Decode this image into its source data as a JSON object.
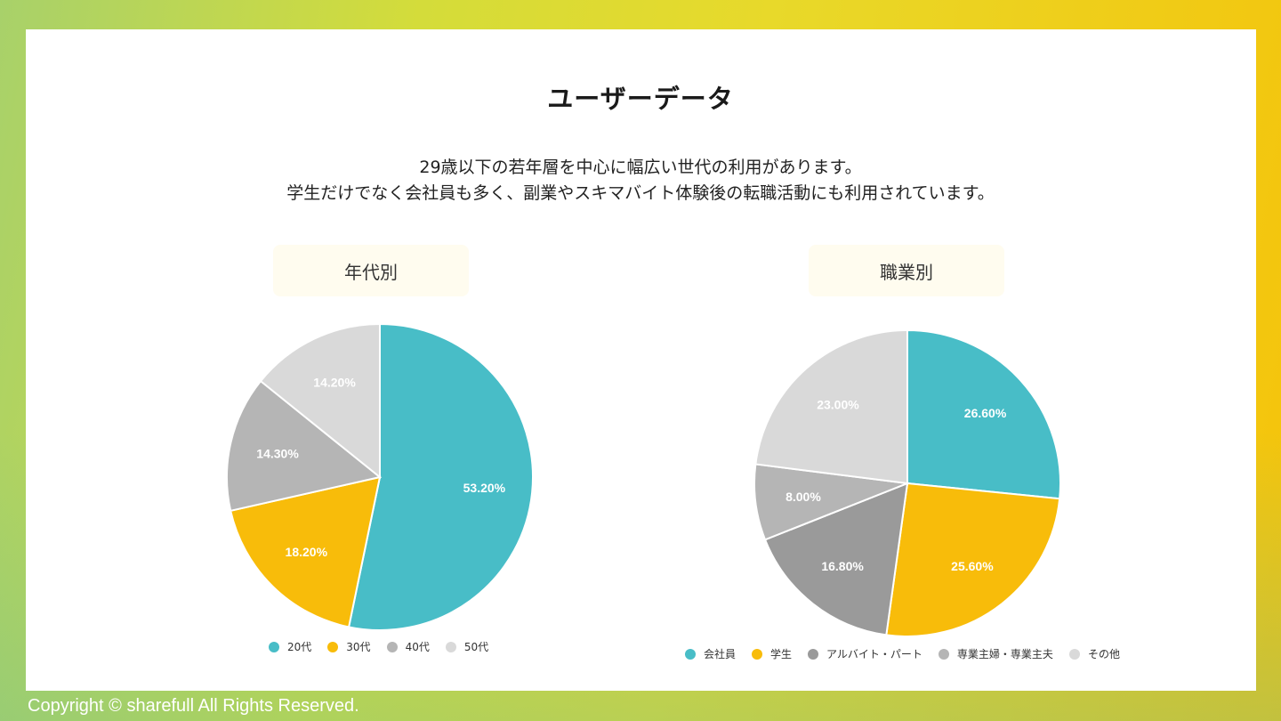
{
  "header": {
    "title": "ユーザーデータ",
    "description_line1": "29歳以下の若年層を中心に幅広い世代の利用があります。",
    "description_line2": "学生だけでなく会社員も多く、副業やスキマバイト体験後の転職活動にも利用されています。"
  },
  "footer": {
    "copyright": "Copyright © sharefull All Rights Reserved."
  },
  "chart_data": [
    {
      "type": "pie",
      "title": "年代別",
      "categories": [
        "20代",
        "30代",
        "40代",
        "50代"
      ],
      "values": [
        53.2,
        18.2,
        14.3,
        14.2
      ],
      "labels": [
        "53.20%",
        "18.20%",
        "14.30%",
        "14.20%"
      ],
      "colors": [
        "#48bdc7",
        "#f8bc0a",
        "#b5b5b5",
        "#d9d9d9"
      ],
      "legend_position": "bottom"
    },
    {
      "type": "pie",
      "title": "職業別",
      "categories": [
        "会社員",
        "学生",
        "アルバイト・パート",
        "専業主婦・専業主夫",
        "その他"
      ],
      "values": [
        26.6,
        25.6,
        16.8,
        8.0,
        23.0
      ],
      "labels": [
        "26.60%",
        "25.60%",
        "16.80%",
        "8.00%",
        "23.00%"
      ],
      "colors": [
        "#48bdc7",
        "#f8bc0a",
        "#9a9a9a",
        "#b5b5b5",
        "#d9d9d9"
      ],
      "legend_position": "bottom"
    }
  ]
}
